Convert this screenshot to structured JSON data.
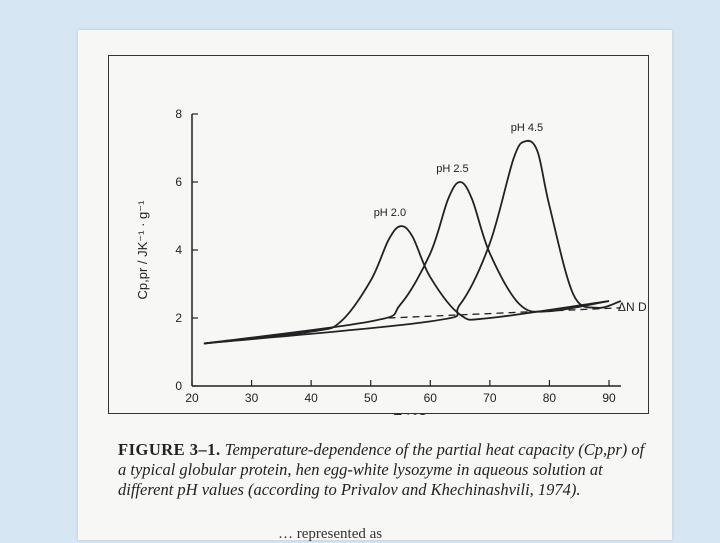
{
  "chart_data": {
    "type": "line",
    "xlabel": "T / °C",
    "ylabel": "Cp,pr / JK⁻¹ · g⁻¹",
    "xlim": [
      20,
      92
    ],
    "ylim": [
      0,
      8
    ],
    "x_ticks": [
      20,
      30,
      40,
      50,
      60,
      70,
      80,
      90
    ],
    "y_ticks": [
      0,
      2,
      4,
      6,
      8
    ],
    "series": [
      {
        "name": "pH 2.0",
        "x": [
          22,
          40,
          45,
          50,
          53,
          55,
          57,
          60,
          65,
          70,
          90
        ],
        "y": [
          1.25,
          1.6,
          1.9,
          3.1,
          4.3,
          4.7,
          4.4,
          3.2,
          2.1,
          2.0,
          2.5
        ]
      },
      {
        "name": "pH 2.5",
        "x": [
          22,
          50,
          55,
          60,
          63,
          65,
          67,
          70,
          75,
          80,
          90
        ],
        "y": [
          1.25,
          1.9,
          2.4,
          3.9,
          5.5,
          6.0,
          5.5,
          3.9,
          2.4,
          2.2,
          2.5
        ]
      },
      {
        "name": "pH 4.5",
        "x": [
          22,
          60,
          65,
          70,
          74,
          76,
          78,
          80,
          84,
          88,
          92
        ],
        "y": [
          1.25,
          1.9,
          2.4,
          4.2,
          6.7,
          7.2,
          6.9,
          5.3,
          2.7,
          2.3,
          2.5
        ]
      },
      {
        "name": "Cp (dashed)",
        "x": [
          53,
          92
        ],
        "y": [
          2.0,
          2.3
        ]
      }
    ],
    "annotations": [
      "pH 2.0",
      "pH 2.5",
      "pH 4.5",
      "ΔN D Cp"
    ]
  },
  "caption": {
    "label": "FIGURE 3–1.",
    "text": "Temperature-dependence of the partial heat capacity (Cp,pr) of a typical globular protein, hen egg-white lysozyme in aqueous solution at different pH values (according to Privalov and Khechinashvili, 1974)."
  },
  "footer_fragment": "… represented as"
}
